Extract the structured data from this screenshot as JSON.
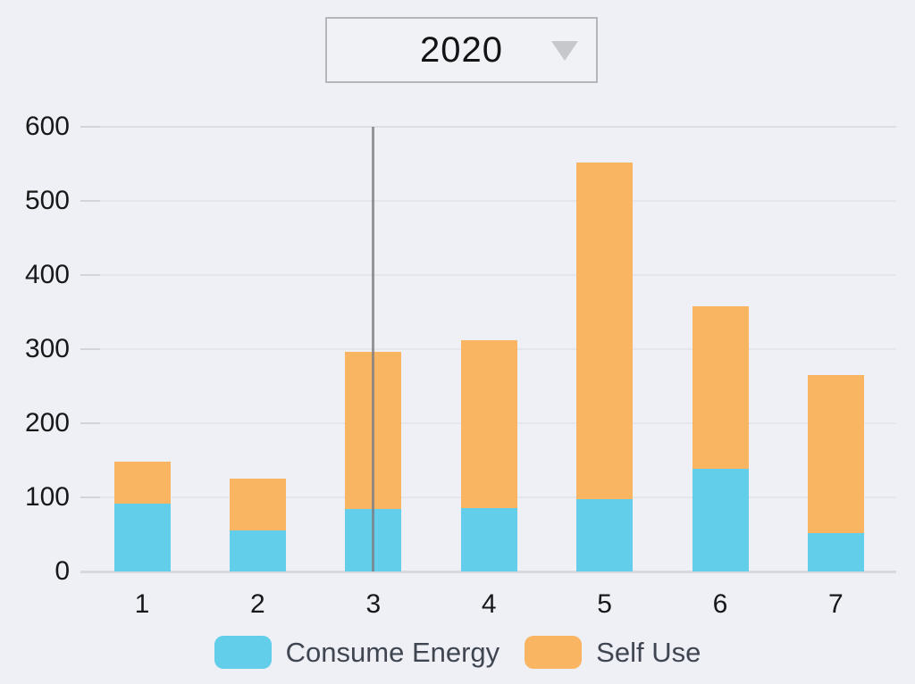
{
  "dropdown": {
    "selected_year": "2020"
  },
  "chart_data": {
    "type": "bar",
    "stacked": true,
    "title": "",
    "xlabel": "",
    "ylabel": "",
    "categories": [
      "1",
      "2",
      "3",
      "4",
      "5",
      "6",
      "7"
    ],
    "series": [
      {
        "name": "Consume Energy",
        "color": "#62CEEA",
        "values": [
          92,
          55,
          84,
          85,
          98,
          139,
          52
        ]
      },
      {
        "name": "Self Use",
        "color": "#FAB563",
        "values": [
          56,
          70,
          212,
          227,
          454,
          219,
          213
        ]
      }
    ],
    "totals": [
      148,
      125,
      296,
      312,
      552,
      358,
      265
    ],
    "ylim": [
      0,
      600
    ],
    "yticks": [
      0,
      100,
      200,
      300,
      400,
      500,
      600
    ],
    "grid": true,
    "legend_position": "bottom",
    "marker_category": "3"
  },
  "legend": {
    "items": [
      {
        "label": "Consume Energy",
        "color": "#62CEEA"
      },
      {
        "label": "Self Use",
        "color": "#FAB563"
      }
    ]
  },
  "colors": {
    "background": "#EFF0F5",
    "gridline": "#E4E6EC",
    "axis_text": "#17181A",
    "consume_energy": "#62CEEA",
    "self_use": "#FAB563",
    "marker_line": "#97979B"
  }
}
